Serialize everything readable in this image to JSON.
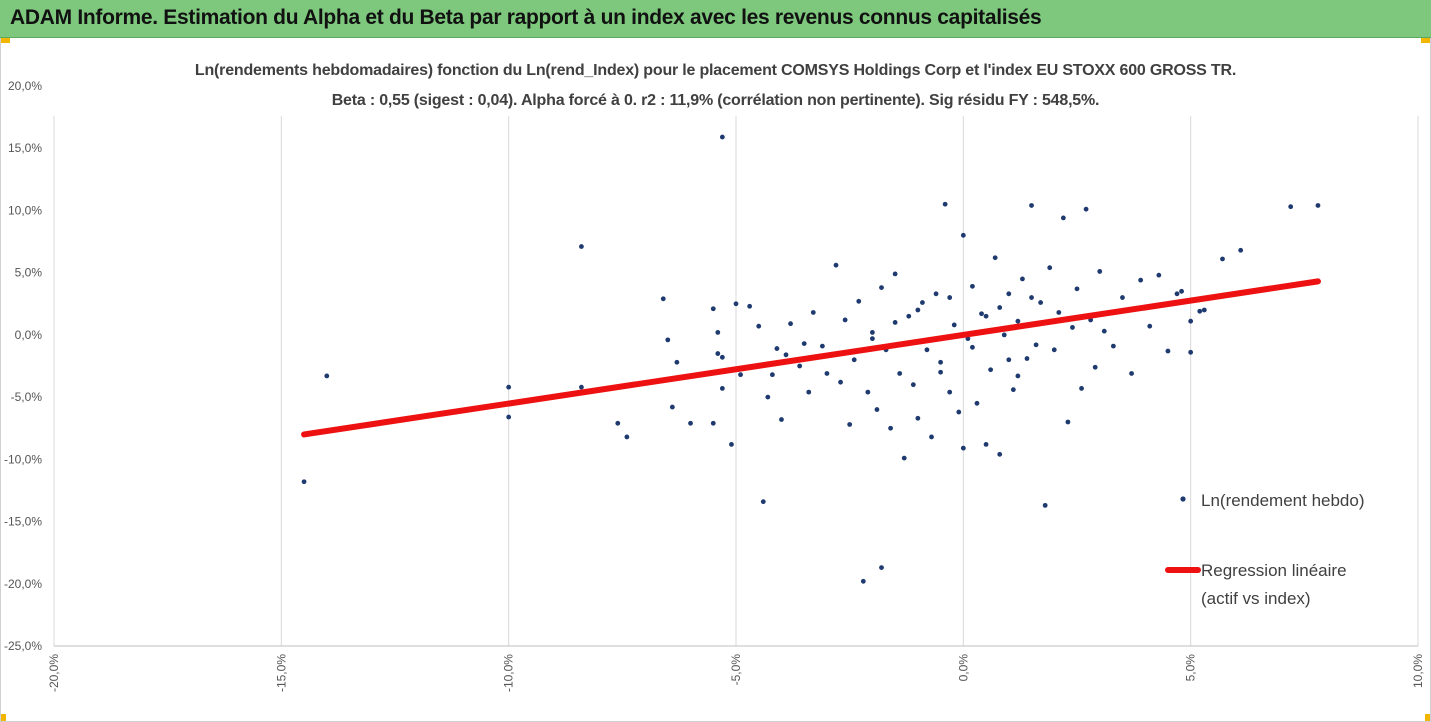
{
  "banner": {
    "title": "ADAM Informe. Estimation du Alpha et du Beta par rapport à un index avec les revenus connus capitalisés",
    "color": "#7ec87e"
  },
  "chart_data": {
    "type": "scatter",
    "title": "Ln(rendements hebdomadaires) fonction du Ln(rend_Index) pour le placement COMSYS Holdings Corp et l'index EU STOXX 600 GROSS TR.",
    "subtitle": "Beta : 0,55 (sigest : 0,04). Alpha forcé à 0. r2 : 11,9% (corrélation non pertinente). Sig résidu FY : 548,5%.",
    "xlim": [
      -0.2,
      0.1
    ],
    "ylim": [
      -0.25,
      0.2
    ],
    "x_ticks": [
      "-20,0%",
      "-15,0%",
      "-10,0%",
      "-5,0%",
      "0,0%",
      "5,0%",
      "10,0%"
    ],
    "y_ticks": [
      "20,0%",
      "15,0%",
      "10,0%",
      "5,0%",
      "0,0%",
      "-5,0%",
      "-10,0%",
      "-15,0%",
      "-20,0%",
      "-25,0%"
    ],
    "grid": "vertical",
    "legend_position": "right",
    "series": [
      {
        "name": "Ln(rendement hebdo)",
        "color": "#1f3a6e",
        "marker": "dot",
        "points": [
          [
            -0.145,
            -0.118
          ],
          [
            -0.14,
            -0.033
          ],
          [
            -0.1,
            -0.042
          ],
          [
            -0.1,
            -0.066
          ],
          [
            -0.084,
            0.071
          ],
          [
            -0.084,
            -0.042
          ],
          [
            -0.076,
            -0.071
          ],
          [
            -0.074,
            -0.082
          ],
          [
            -0.066,
            0.029
          ],
          [
            -0.065,
            -0.004
          ],
          [
            -0.064,
            -0.058
          ],
          [
            -0.063,
            -0.022
          ],
          [
            -0.06,
            -0.071
          ],
          [
            -0.055,
            0.021
          ],
          [
            -0.055,
            -0.071
          ],
          [
            -0.054,
            0.002
          ],
          [
            -0.054,
            -0.015
          ],
          [
            -0.053,
            -0.018
          ],
          [
            -0.053,
            -0.043
          ],
          [
            -0.053,
            0.159
          ],
          [
            -0.051,
            -0.088
          ],
          [
            -0.05,
            0.025
          ],
          [
            -0.049,
            -0.032
          ],
          [
            -0.047,
            0.023
          ],
          [
            -0.045,
            0.007
          ],
          [
            -0.044,
            -0.134
          ],
          [
            -0.043,
            -0.05
          ],
          [
            -0.042,
            -0.032
          ],
          [
            -0.041,
            -0.011
          ],
          [
            -0.04,
            -0.068
          ],
          [
            -0.039,
            -0.016
          ],
          [
            -0.038,
            0.009
          ],
          [
            -0.036,
            -0.025
          ],
          [
            -0.035,
            -0.007
          ],
          [
            -0.034,
            -0.046
          ],
          [
            -0.033,
            0.018
          ],
          [
            -0.031,
            -0.009
          ],
          [
            -0.03,
            -0.031
          ],
          [
            -0.028,
            0.056
          ],
          [
            -0.027,
            -0.038
          ],
          [
            -0.026,
            0.012
          ],
          [
            -0.025,
            -0.072
          ],
          [
            -0.024,
            -0.02
          ],
          [
            -0.023,
            0.027
          ],
          [
            -0.022,
            -0.198
          ],
          [
            -0.021,
            -0.046
          ],
          [
            -0.02,
            0.002
          ],
          [
            -0.019,
            -0.06
          ],
          [
            -0.018,
            -0.187
          ],
          [
            -0.018,
            0.038
          ],
          [
            -0.017,
            -0.012
          ],
          [
            -0.016,
            -0.075
          ],
          [
            -0.015,
            0.049
          ],
          [
            -0.014,
            -0.031
          ],
          [
            -0.013,
            -0.099
          ],
          [
            -0.012,
            0.015
          ],
          [
            -0.011,
            -0.04
          ],
          [
            -0.01,
            -0.067
          ],
          [
            -0.009,
            0.026
          ],
          [
            -0.008,
            -0.012
          ],
          [
            -0.007,
            -0.082
          ],
          [
            -0.006,
            0.033
          ],
          [
            -0.005,
            -0.022
          ],
          [
            -0.004,
            0.105
          ],
          [
            -0.003,
            -0.046
          ],
          [
            -0.002,
            0.008
          ],
          [
            -0.001,
            -0.062
          ],
          [
            0.0,
            -0.091
          ],
          [
            0.0,
            0.08
          ],
          [
            0.001,
            -0.003
          ],
          [
            0.002,
            0.039
          ],
          [
            0.003,
            -0.055
          ],
          [
            0.004,
            0.017
          ],
          [
            0.005,
            -0.088
          ],
          [
            0.006,
            -0.028
          ],
          [
            0.007,
            0.062
          ],
          [
            0.008,
            -0.096
          ],
          [
            0.009,
            0.0
          ],
          [
            0.01,
            0.033
          ],
          [
            0.011,
            -0.044
          ],
          [
            0.012,
            0.011
          ],
          [
            0.013,
            0.045
          ],
          [
            0.014,
            -0.019
          ],
          [
            0.015,
            0.104
          ],
          [
            0.016,
            -0.008
          ],
          [
            0.017,
            0.026
          ],
          [
            0.018,
            -0.137
          ],
          [
            0.019,
            0.054
          ],
          [
            0.02,
            -0.012
          ],
          [
            0.021,
            0.018
          ],
          [
            0.022,
            0.094
          ],
          [
            0.023,
            -0.07
          ],
          [
            0.024,
            0.006
          ],
          [
            0.025,
            0.037
          ],
          [
            0.026,
            -0.043
          ],
          [
            0.027,
            0.101
          ],
          [
            0.028,
            0.012
          ],
          [
            0.029,
            -0.026
          ],
          [
            0.03,
            0.051
          ],
          [
            0.031,
            0.003
          ],
          [
            0.033,
            -0.009
          ],
          [
            0.035,
            0.03
          ],
          [
            0.037,
            -0.031
          ],
          [
            0.039,
            0.044
          ],
          [
            0.041,
            0.007
          ],
          [
            0.043,
            0.048
          ],
          [
            0.045,
            -0.013
          ],
          [
            0.047,
            0.033
          ],
          [
            0.048,
            0.035
          ],
          [
            0.05,
            -0.014
          ],
          [
            0.05,
            0.011
          ],
          [
            0.052,
            0.019
          ],
          [
            0.053,
            0.02
          ],
          [
            0.057,
            0.061
          ],
          [
            0.061,
            0.068
          ],
          [
            0.072,
            0.103
          ],
          [
            0.078,
            0.104
          ],
          [
            -0.02,
            -0.003
          ],
          [
            -0.01,
            0.02
          ],
          [
            -0.005,
            -0.03
          ],
          [
            0.005,
            0.015
          ],
          [
            0.01,
            -0.02
          ],
          [
            0.015,
            0.03
          ],
          [
            -0.015,
            0.01
          ],
          [
            0.002,
            -0.01
          ],
          [
            0.008,
            0.022
          ],
          [
            -0.003,
            0.03
          ],
          [
            0.012,
            -0.033
          ]
        ]
      },
      {
        "name": "Regression linéaire (actif vs index)",
        "legend_lines": [
          "Regression linéaire",
          "(actif vs index)"
        ],
        "color": "#ee1111",
        "marker": "line",
        "points": [
          [
            -0.145,
            -0.08
          ],
          [
            0.078,
            0.043
          ]
        ]
      }
    ]
  }
}
